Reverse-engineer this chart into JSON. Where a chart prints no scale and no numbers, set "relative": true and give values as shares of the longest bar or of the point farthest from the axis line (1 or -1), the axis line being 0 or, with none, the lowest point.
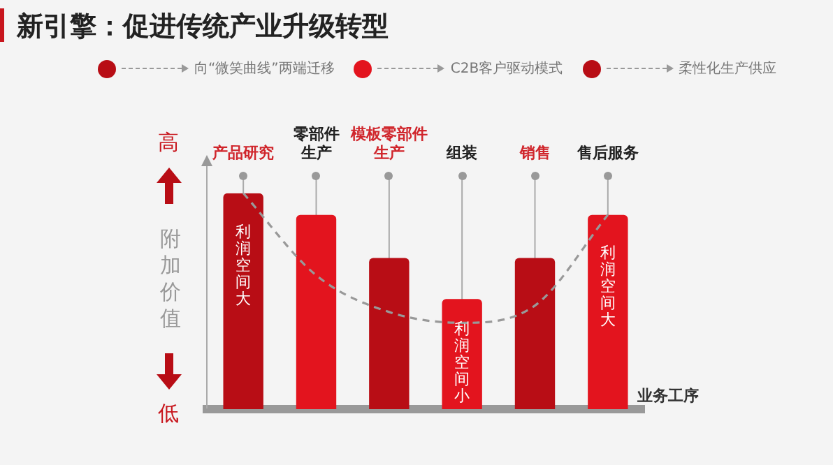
{
  "chart_data": {
    "type": "bar",
    "title": "新引擎：促进传统产业升级转型",
    "categories": [
      "产品研究",
      "零部件生产",
      "模板零部件生产",
      "组装",
      "销售",
      "售后服务"
    ],
    "series": [
      {
        "values": [
          1,
          0.9,
          0.7,
          0.51,
          0.7,
          0.9
        ],
        "colors": [
          "#b80d15",
          "#e3141e",
          "#b80d15",
          "#e3141e",
          "#b80d15",
          "#e3141e"
        ]
      },
      {
        "type": "line",
        "values": [
          1,
          0.62,
          0.45,
          0.4,
          0.48,
          0.9
        ],
        "color": "#999999",
        "line_style": "dashed",
        "marker": "none"
      }
    ],
    "relative": true,
    "ylabel": "附加价值",
    "xlabel": "业务工序",
    "grid": "x",
    "legend": false,
    "annotations": [
      "向“微笑曲线”两端迁移",
      "C2B客户驱动模式",
      "柔性化生产供应",
      "高",
      "低",
      "利润空间大",
      "利润空间小",
      "利润空间大"
    ]
  }
}
